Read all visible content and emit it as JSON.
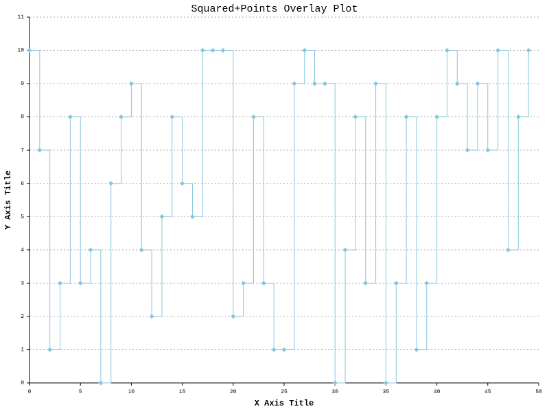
{
  "chart_data": {
    "type": "step",
    "title": "Squared+Points Overlay Plot",
    "x_label": "X Axis Title",
    "y_label": "Y Axis Title",
    "x": [
      0,
      1,
      2,
      3,
      4,
      5,
      6,
      7,
      8,
      9,
      10,
      11,
      12,
      13,
      14,
      15,
      16,
      17,
      18,
      19,
      20,
      21,
      22,
      23,
      24,
      25,
      26,
      27,
      28,
      29,
      30,
      31,
      32,
      33,
      34,
      35,
      36,
      37,
      38,
      39,
      40,
      41,
      42,
      43,
      44,
      45,
      46,
      47,
      48,
      49
    ],
    "values": [
      10,
      7,
      1,
      3,
      8,
      3,
      4,
      0,
      6,
      8,
      9,
      4,
      2,
      5,
      8,
      6,
      5,
      10,
      10,
      10,
      2,
      3,
      8,
      3,
      1,
      1,
      9,
      10,
      9,
      9,
      0,
      4,
      8,
      3,
      9,
      0,
      3,
      8,
      1,
      3,
      8,
      10,
      9,
      7,
      9,
      7,
      10,
      4,
      8,
      10
    ],
    "color": "#87c7dd",
    "xlim": [
      0,
      50
    ],
    "xticks": [
      0,
      5,
      10,
      15,
      20,
      25,
      30,
      35,
      40,
      45,
      50
    ],
    "ylim": [
      0,
      11
    ],
    "yticks": [
      0,
      1,
      2,
      3,
      4,
      5,
      6,
      7,
      8,
      9,
      10,
      11
    ],
    "grid": true
  }
}
